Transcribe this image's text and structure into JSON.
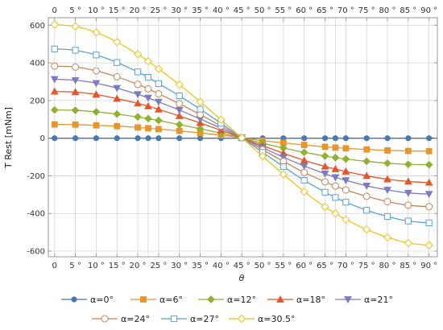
{
  "chart_data": {
    "type": "line",
    "xlabel": "θ",
    "ylabel": "T Rest [mNm]",
    "xlim": [
      -1.5,
      92
    ],
    "ylim": [
      -630,
      640
    ],
    "x_ticks": [
      0,
      5,
      10,
      15,
      20,
      25,
      30,
      35,
      40,
      45,
      50,
      55,
      60,
      65,
      70,
      75,
      80,
      85,
      90
    ],
    "x_tick_labels": [
      "0",
      "5 °",
      "10 °",
      "15 °",
      "20 °",
      "25 °",
      "30 °",
      "35 °",
      "40 °",
      "45 °",
      "50 °",
      "55 °",
      "60 °",
      "65 °",
      "70 °",
      "75 °",
      "80 °",
      "85 °",
      "90 °"
    ],
    "y_ticks": [
      -600,
      -400,
      -200,
      0,
      200,
      400,
      600
    ],
    "y_tick_labels": [
      "-600",
      "-400",
      "-200",
      "0",
      "200",
      "400",
      "600"
    ],
    "vertical_gridlines": [
      0,
      5,
      10,
      15,
      20,
      22.5,
      25,
      30,
      35,
      40,
      45,
      50,
      55,
      60,
      65,
      67.5,
      70,
      75,
      80,
      85,
      90
    ],
    "horizontal_gridlines": [
      -600,
      -400,
      -200,
      200,
      400,
      600
    ],
    "grid": true,
    "legend_position": "bottom",
    "x": [
      0,
      5,
      10,
      15,
      20,
      22.5,
      25,
      30,
      35,
      40,
      45,
      50,
      55,
      60,
      65,
      67.5,
      70,
      75,
      80,
      85,
      90
    ],
    "series": [
      {
        "name": "α=0°",
        "color": "#4a78b0",
        "marker": "circle",
        "values": [
          0,
          0,
          0,
          0,
          0,
          0,
          0,
          0,
          0,
          0,
          0,
          0,
          0,
          0,
          0,
          0,
          0,
          0,
          0,
          0,
          0
        ]
      },
      {
        "name": "α=6°",
        "color": "#e8952b",
        "marker": "square",
        "values": [
          73,
          72,
          68,
          64,
          57,
          53,
          48,
          39,
          28,
          16,
          2,
          -13,
          -25,
          -36,
          -46,
          -50,
          -54,
          -60,
          -65,
          -68,
          -69
        ]
      },
      {
        "name": "α=12°",
        "color": "#8fb030",
        "marker": "diamond",
        "values": [
          150,
          148,
          140,
          128,
          113,
          104,
          94,
          72,
          50,
          27,
          2,
          -27,
          -52,
          -75,
          -95,
          -103,
          -111,
          -123,
          -133,
          -139,
          -141
        ]
      },
      {
        "name": "α=18°",
        "color": "#e8542a",
        "marker": "triangle-up",
        "values": [
          248,
          245,
          232,
          210,
          185,
          170,
          153,
          118,
          81,
          42,
          2,
          -40,
          -80,
          -118,
          -150,
          -164,
          -177,
          -200,
          -218,
          -230,
          -236
        ]
      },
      {
        "name": "α=21°",
        "color": "#7b7bbf",
        "marker": "triangle-down",
        "values": [
          313,
          308,
          292,
          266,
          233,
          214,
          193,
          149,
          102,
          53,
          2,
          -50,
          -101,
          -148,
          -189,
          -208,
          -224,
          -253,
          -275,
          -291,
          -297
        ]
      },
      {
        "name": "α=24°",
        "color": "#c9855a",
        "marker": "open-circle",
        "values": [
          383,
          378,
          358,
          326,
          286,
          262,
          236,
          183,
          125,
          65,
          2,
          -61,
          -123,
          -182,
          -232,
          -254,
          -275,
          -309,
          -337,
          -356,
          -364
        ]
      },
      {
        "name": "α=27°",
        "color": "#5aa2d6",
        "marker": "open-square",
        "values": [
          474,
          467,
          442,
          402,
          352,
          323,
          290,
          225,
          154,
          79,
          2,
          -75,
          -151,
          -224,
          -287,
          -315,
          -340,
          -383,
          -416,
          -440,
          -450
        ]
      },
      {
        "name": "α=30.5°",
        "color": "#f2c21a",
        "marker": "open-diamond",
        "values": [
          603,
          594,
          562,
          511,
          446,
          409,
          368,
          284,
          193,
          98,
          2,
          -96,
          -192,
          -284,
          -365,
          -400,
          -432,
          -485,
          -527,
          -557,
          -569
        ]
      }
    ]
  }
}
